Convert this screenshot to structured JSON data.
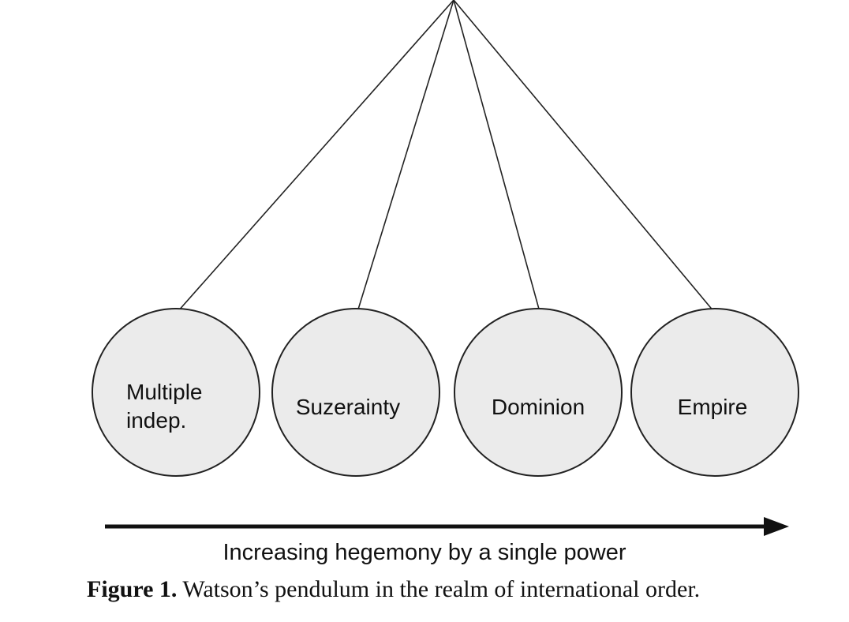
{
  "diagram": {
    "bobs": [
      {
        "label_lines": [
          "Multiple",
          "indep."
        ]
      },
      {
        "label_lines": [
          "Suzerainty"
        ]
      },
      {
        "label_lines": [
          "Dominion"
        ]
      },
      {
        "label_lines": [
          "Empire"
        ]
      }
    ],
    "arrow_label": "Increasing hegemony by a single power",
    "colors": {
      "bob_fill": "#ebebeb",
      "stroke": "#222222",
      "arrow": "#111111"
    }
  },
  "caption": {
    "label": "Figure 1.",
    "text": "Watson’s pendulum in the realm of international order."
  }
}
